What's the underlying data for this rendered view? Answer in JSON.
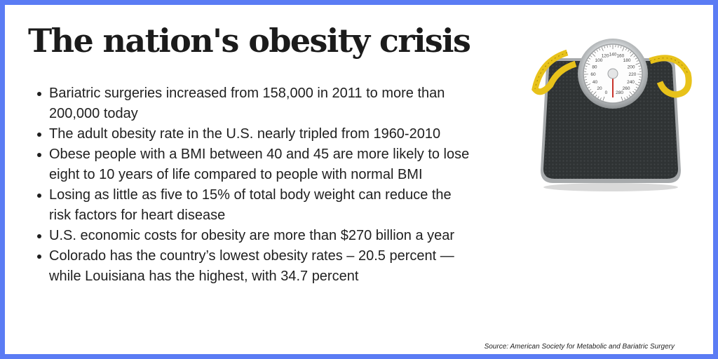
{
  "title": "The nation's obesity crisis",
  "bullets": [
    "Bariatric surgeries increased from 158,000 in 2011 to more than 200,000 today",
    "The adult obesity rate in the U.S. nearly tripled from 1960-2010",
    "Obese people with a BMI between 40 and 45 are more likely to lose eight to 10 years of life compared to people with normal BMI",
    "Losing as little as five to 15% of total body weight can reduce the risk factors for heart disease",
    "U.S. economic costs for obesity are more than $270 billion a year",
    "Colorado has the country’s lowest obesity rates – 20.5 percent — while Louisiana has the highest, with 34.7 percent"
  ],
  "source": "Source: American Society for Metabolic and Bariatric Surgery",
  "scale_dial": {
    "labels": [
      "0",
      "20",
      "40",
      "60",
      "80",
      "100",
      "120",
      "140",
      "160",
      "180",
      "200",
      "220",
      "240",
      "260",
      "280"
    ]
  },
  "colors": {
    "border": "#5b7cf4",
    "text": "#1b1b1b",
    "tape": "#e8c21a",
    "scale_body": "#2e3233"
  }
}
